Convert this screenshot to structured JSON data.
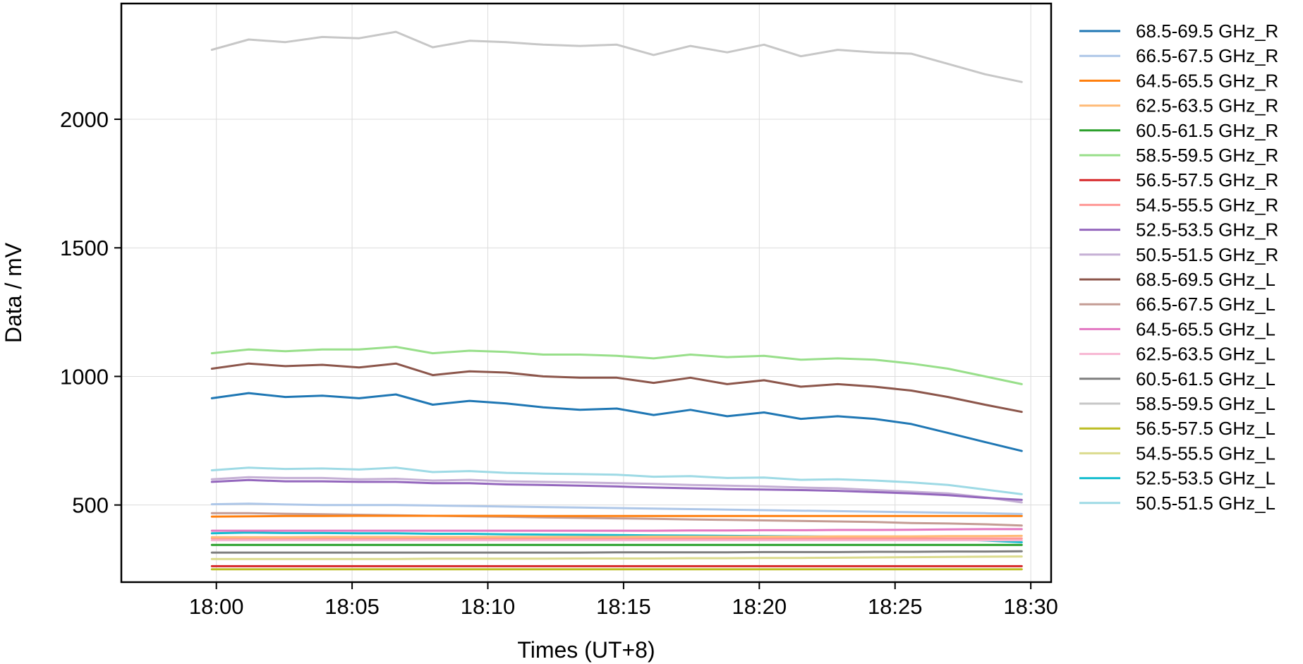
{
  "chart_data": {
    "type": "line",
    "title": "",
    "xlabel": "Times (UT+8)",
    "ylabel": "Data / mV",
    "x_axis": {
      "kind": "time",
      "min": "17:56:30",
      "max": "18:30:45",
      "ticks": [
        "18:00",
        "18:05",
        "18:10",
        "18:15",
        "18:20",
        "18:25",
        "18:30"
      ]
    },
    "y_axis": {
      "min": 200,
      "max": 2450,
      "ticks": [
        500,
        1000,
        1500,
        2000
      ]
    },
    "grid": true,
    "legend_position": "outside-right",
    "time_range": [
      "17:59:50",
      "18:29:40"
    ],
    "series": [
      {
        "name": "68.5-69.5 GHz_R",
        "color": "#1f77b4",
        "values": [
          915,
          935,
          920,
          925,
          915,
          930,
          890,
          905,
          895,
          880,
          870,
          875,
          850,
          870,
          845,
          860,
          835,
          845,
          835,
          815,
          780,
          745,
          710
        ]
      },
      {
        "name": "66.5-67.5 GHz_R",
        "color": "#aec7e8",
        "values": [
          503,
          505,
          502,
          500,
          500,
          500,
          498,
          496,
          494,
          492,
          490,
          488,
          486,
          484,
          482,
          480,
          478,
          476,
          474,
          472,
          470,
          468,
          465
        ]
      },
      {
        "name": "64.5-65.5 GHz_R",
        "color": "#ff7f0e",
        "values": [
          455,
          456,
          457,
          457,
          458,
          458,
          458,
          458,
          458,
          457,
          457,
          457,
          457,
          457,
          457,
          457,
          457,
          457,
          457,
          457,
          457,
          457,
          457
        ]
      },
      {
        "name": "62.5-63.5 GHz_R",
        "color": "#ffbb78",
        "values": [
          375,
          375,
          375,
          376,
          376,
          376,
          376,
          376,
          376,
          376,
          376,
          376,
          377,
          377,
          377,
          377,
          377,
          378,
          378,
          378,
          379,
          379,
          380
        ]
      },
      {
        "name": "60.5-61.5 GHz_R",
        "color": "#2ca02c",
        "values": [
          345,
          345,
          345,
          345,
          345,
          345,
          345,
          345,
          345,
          345,
          345,
          345,
          345,
          345,
          345,
          345,
          345,
          345,
          345,
          345,
          345,
          345,
          345
        ]
      },
      {
        "name": "58.5-59.5 GHz_R",
        "color": "#98df8a",
        "values": [
          1090,
          1105,
          1098,
          1105,
          1105,
          1115,
          1090,
          1100,
          1095,
          1085,
          1085,
          1080,
          1070,
          1085,
          1075,
          1080,
          1065,
          1070,
          1065,
          1050,
          1030,
          1000,
          970
        ]
      },
      {
        "name": "56.5-57.5 GHz_R",
        "color": "#d62728",
        "values": [
          262,
          262,
          262,
          262,
          262,
          262,
          262,
          262,
          262,
          262,
          262,
          262,
          262,
          262,
          262,
          262,
          262,
          262,
          262,
          262,
          262,
          262,
          262
        ]
      },
      {
        "name": "54.5-55.5 GHz_R",
        "color": "#ff9896",
        "values": [
          370,
          370,
          370,
          370,
          370,
          370,
          370,
          370,
          370,
          370,
          370,
          370,
          370,
          370,
          370,
          370,
          370,
          370,
          370,
          370,
          370,
          370,
          370
        ]
      },
      {
        "name": "52.5-53.5 GHz_R",
        "color": "#9467bd",
        "values": [
          590,
          597,
          592,
          592,
          590,
          590,
          585,
          585,
          580,
          578,
          575,
          572,
          568,
          565,
          562,
          560,
          558,
          555,
          550,
          545,
          538,
          528,
          520
        ]
      },
      {
        "name": "50.5-51.5 GHz_R",
        "color": "#c5b0d5",
        "values": [
          600,
          608,
          605,
          605,
          600,
          602,
          595,
          598,
          592,
          590,
          588,
          585,
          582,
          578,
          575,
          572,
          568,
          565,
          558,
          552,
          545,
          530,
          510
        ]
      },
      {
        "name": "68.5-69.5 GHz_L",
        "color": "#8c564b",
        "values": [
          1030,
          1050,
          1040,
          1045,
          1035,
          1050,
          1005,
          1020,
          1015,
          1000,
          995,
          995,
          975,
          995,
          970,
          985,
          960,
          970,
          960,
          945,
          920,
          890,
          862
        ]
      },
      {
        "name": "66.5-67.5 GHz_L",
        "color": "#c49c94",
        "values": [
          468,
          468,
          466,
          464,
          462,
          460,
          458,
          456,
          454,
          452,
          450,
          448,
          446,
          444,
          442,
          440,
          438,
          436,
          434,
          430,
          428,
          425,
          420
        ]
      },
      {
        "name": "64.5-65.5 GHz_L",
        "color": "#e377c2",
        "values": [
          400,
          400,
          400,
          400,
          400,
          400,
          400,
          400,
          400,
          400,
          400,
          400,
          400,
          401,
          401,
          402,
          402,
          403,
          403,
          404,
          405,
          406,
          406
        ]
      },
      {
        "name": "62.5-63.5 GHz_L",
        "color": "#f7b6d2",
        "values": [
          363,
          363,
          363,
          363,
          363,
          363,
          363,
          363,
          363,
          363,
          363,
          363,
          363,
          363,
          363,
          363,
          363,
          363,
          363,
          363,
          363,
          363,
          363
        ]
      },
      {
        "name": "60.5-61.5 GHz_L",
        "color": "#7f7f7f",
        "values": [
          315,
          315,
          315,
          315,
          315,
          315,
          315,
          315,
          315,
          315,
          315,
          316,
          316,
          316,
          316,
          317,
          317,
          317,
          318,
          318,
          319,
          319,
          320
        ]
      },
      {
        "name": "58.5-59.5 GHz_L",
        "color": "#c7c7c7",
        "values": [
          2270,
          2310,
          2300,
          2320,
          2315,
          2340,
          2280,
          2305,
          2300,
          2290,
          2285,
          2290,
          2250,
          2285,
          2260,
          2290,
          2245,
          2270,
          2260,
          2255,
          2215,
          2175,
          2145
        ]
      },
      {
        "name": "56.5-57.5 GHz_L",
        "color": "#bcbd22",
        "values": [
          250,
          250,
          250,
          250,
          250,
          250,
          250,
          250,
          250,
          250,
          250,
          250,
          250,
          250,
          250,
          250,
          250,
          250,
          250,
          250,
          250,
          250,
          250
        ]
      },
      {
        "name": "54.5-55.5 GHz_L",
        "color": "#dbdb8d",
        "values": [
          290,
          290,
          290,
          290,
          290,
          290,
          291,
          291,
          291,
          291,
          292,
          292,
          292,
          293,
          293,
          294,
          294,
          295,
          296,
          297,
          298,
          299,
          300
        ]
      },
      {
        "name": "52.5-53.5 GHz_L",
        "color": "#17becf",
        "values": [
          390,
          393,
          391,
          391,
          390,
          390,
          388,
          388,
          386,
          385,
          384,
          383,
          382,
          381,
          380,
          379,
          378,
          377,
          375,
          372,
          368,
          362,
          355
        ]
      },
      {
        "name": "50.5-51.5 GHz_L",
        "color": "#9edae5",
        "values": [
          635,
          645,
          640,
          642,
          638,
          645,
          628,
          632,
          625,
          622,
          620,
          618,
          610,
          612,
          605,
          607,
          598,
          600,
          595,
          588,
          578,
          560,
          542
        ]
      }
    ]
  }
}
